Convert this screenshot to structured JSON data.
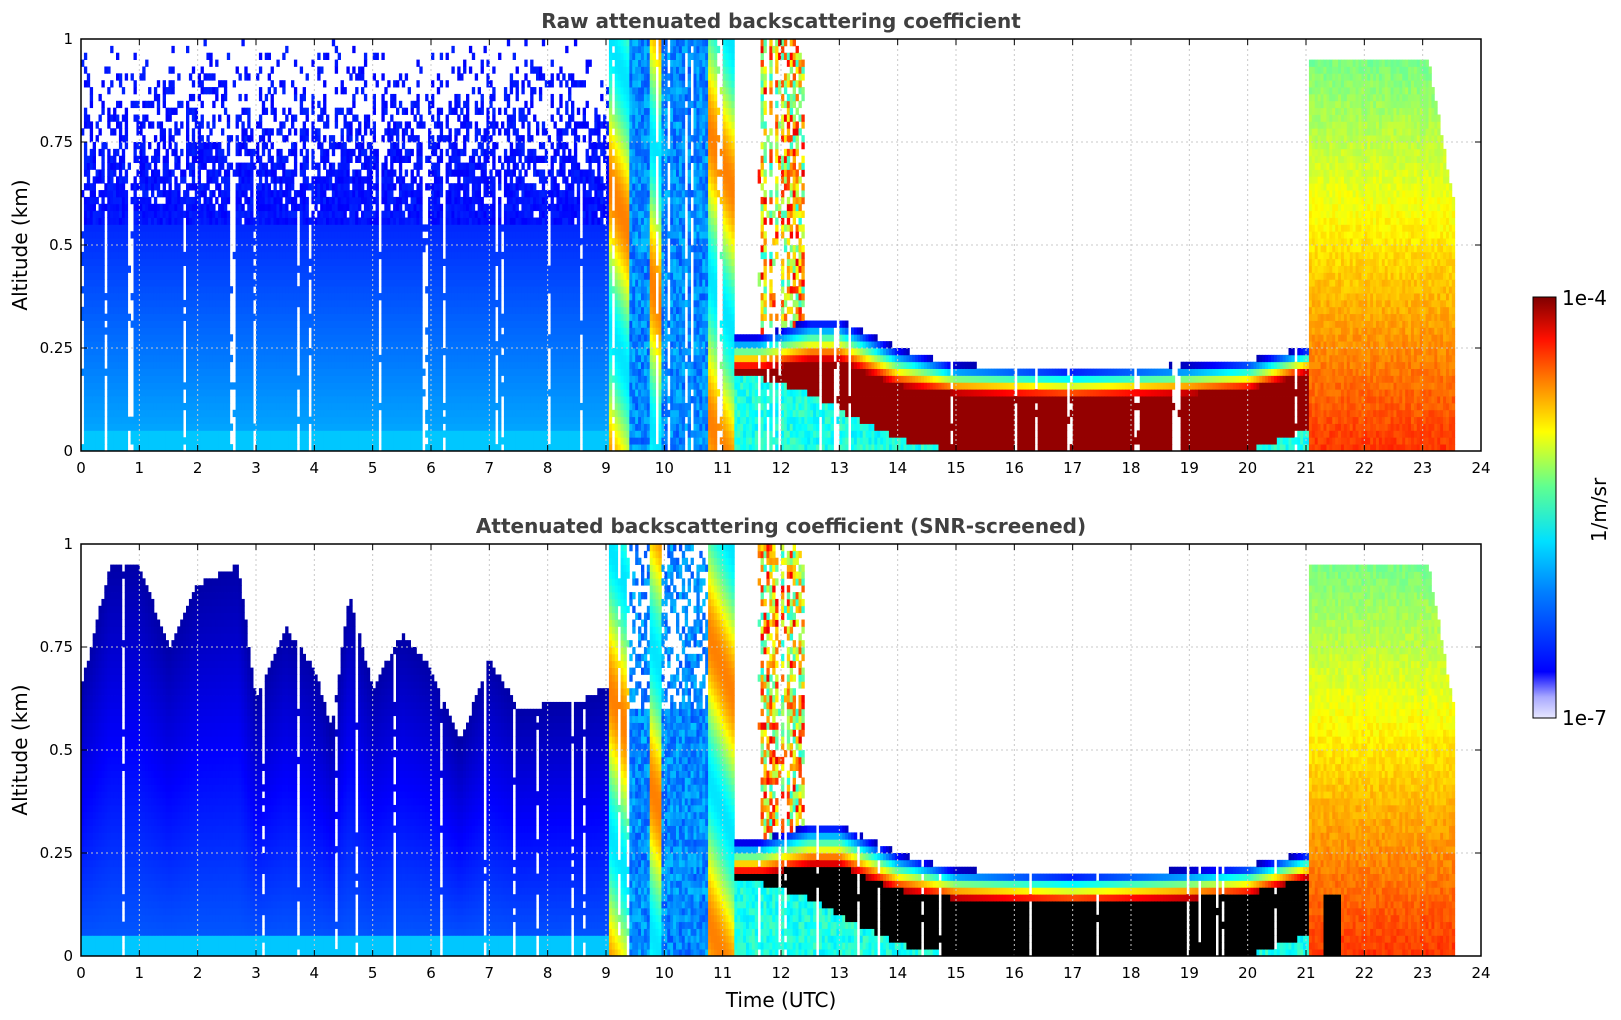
{
  "chart_data": [
    {
      "type": "heatmap",
      "title": "Raw attenuated backscattering coefficient",
      "xlabel": "",
      "ylabel": "Altitude (km)",
      "xlim": [
        0,
        24
      ],
      "ylim": [
        0,
        1
      ],
      "xticks": [
        "0",
        "1",
        "2",
        "3",
        "4",
        "5",
        "6",
        "7",
        "8",
        "9",
        "10",
        "11",
        "12",
        "13",
        "14",
        "15",
        "16",
        "17",
        "18",
        "19",
        "20",
        "21",
        "22",
        "23",
        "24"
      ],
      "yticks": [
        "0",
        "0.25",
        "0.5",
        "0.75",
        "1"
      ],
      "grid": true,
      "features": {
        "cloud_base_km": [
          {
            "t": 11.6,
            "z": 0.18
          },
          {
            "t": 12.5,
            "z": 0.14
          },
          {
            "t": 13.0,
            "z": 0.1
          },
          {
            "t": 14.0,
            "z": 0.03
          },
          {
            "t": 15.0,
            "z": 0.0
          },
          {
            "t": 20.0,
            "z": 0.0
          },
          {
            "t": 21.0,
            "z": 0.05
          }
        ],
        "cloud_top_km": [
          {
            "t": 11.6,
            "z": 0.28
          },
          {
            "t": 12.5,
            "z": 0.32
          },
          {
            "t": 13.0,
            "z": 0.32
          },
          {
            "t": 14.0,
            "z": 0.25
          },
          {
            "t": 15.0,
            "z": 0.21
          },
          {
            "t": 17.0,
            "z": 0.2
          },
          {
            "t": 19.0,
            "z": 0.21
          },
          {
            "t": 20.0,
            "z": 0.22
          },
          {
            "t": 21.0,
            "z": 0.25
          }
        ],
        "dense_layer_top_km": [
          {
            "t": 11.7,
            "z": 0.2
          },
          {
            "t": 12.5,
            "z": 0.22
          },
          {
            "t": 13.0,
            "z": 0.22
          },
          {
            "t": 14.0,
            "z": 0.16
          },
          {
            "t": 15.0,
            "z": 0.14
          },
          {
            "t": 17.0,
            "z": 0.13
          },
          {
            "t": 19.0,
            "z": 0.14
          },
          {
            "t": 20.0,
            "z": 0.15
          },
          {
            "t": 21.0,
            "z": 0.19
          }
        ],
        "deep_signal_periods_h": [
          [
            9.05,
            10.7
          ],
          [
            10.7,
            11.2
          ],
          [
            21.1,
            23.55
          ]
        ],
        "data_end_h": 23.55
      }
    },
    {
      "type": "heatmap",
      "title": "Attenuated backscattering coefficient (SNR-screened)",
      "xlabel": "Time (UTC)",
      "ylabel": "Altitude (km)",
      "xlim": [
        0,
        24
      ],
      "ylim": [
        0,
        1
      ],
      "xticks": [
        "0",
        "1",
        "2",
        "3",
        "4",
        "5",
        "6",
        "7",
        "8",
        "9",
        "10",
        "11",
        "12",
        "13",
        "14",
        "15",
        "16",
        "17",
        "18",
        "19",
        "20",
        "21",
        "22",
        "23",
        "24"
      ],
      "yticks": [
        "0",
        "0.25",
        "0.5",
        "0.75",
        "1"
      ],
      "grid": true,
      "features": {
        "boundary_layer_top_km": [
          {
            "t": 0.0,
            "z": 0.65
          },
          {
            "t": 0.5,
            "z": 0.95
          },
          {
            "t": 1.0,
            "z": 0.95
          },
          {
            "t": 1.5,
            "z": 0.75
          },
          {
            "t": 2.0,
            "z": 0.9
          },
          {
            "t": 2.7,
            "z": 0.95
          },
          {
            "t": 3.0,
            "z": 0.62
          },
          {
            "t": 3.5,
            "z": 0.8
          },
          {
            "t": 4.0,
            "z": 0.7
          },
          {
            "t": 4.3,
            "z": 0.55
          },
          {
            "t": 4.6,
            "z": 0.88
          },
          {
            "t": 5.0,
            "z": 0.65
          },
          {
            "t": 5.5,
            "z": 0.78
          },
          {
            "t": 6.0,
            "z": 0.7
          },
          {
            "t": 6.5,
            "z": 0.52
          },
          {
            "t": 7.0,
            "z": 0.72
          },
          {
            "t": 7.5,
            "z": 0.6
          },
          {
            "t": 8.5,
            "z": 0.62
          },
          {
            "t": 9.0,
            "z": 0.65
          }
        ],
        "saturated_layer": true
      }
    }
  ],
  "colorbar": {
    "max_label": "1e-4",
    "min_label": "1e-7",
    "unit_label": "1/m/sr",
    "colormap": "jet"
  }
}
